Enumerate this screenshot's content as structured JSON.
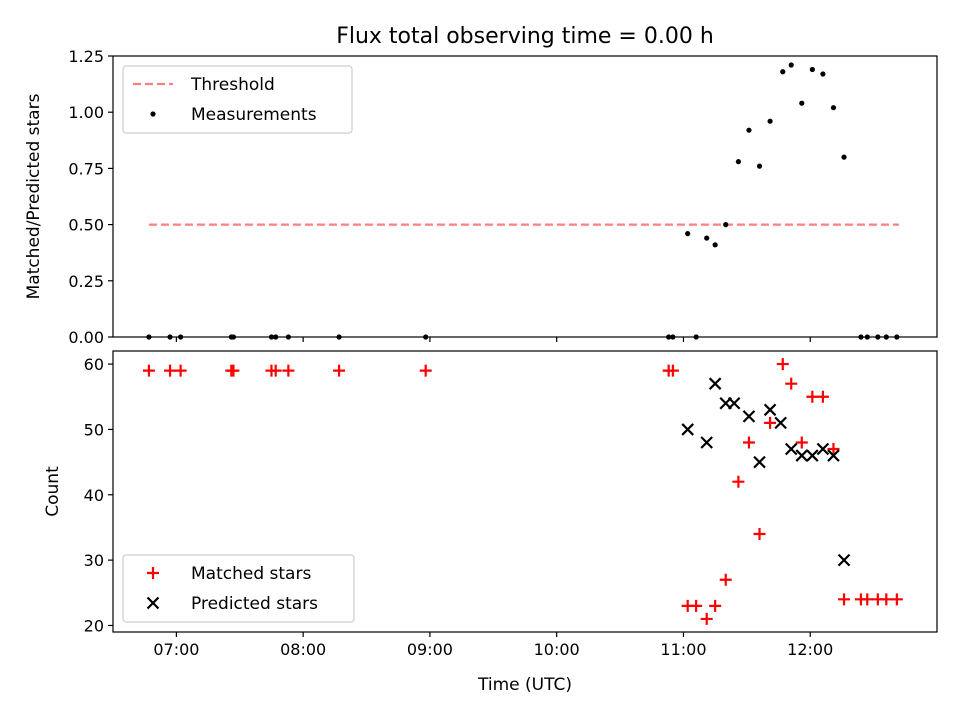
{
  "figure": {
    "title": "Flux total observing time = 0.00 h",
    "xlabel": "Time (UTC)"
  },
  "chart_data": [
    {
      "type": "scatter",
      "title": "Flux total observing time = 0.00 h",
      "xlabel": "",
      "ylabel": "Matched/Predicted stars",
      "xlim": [
        "06:30",
        "13:00"
      ],
      "ylim": [
        0,
        1.25
      ],
      "x_ticks": [
        "07:00",
        "08:00",
        "09:00",
        "10:00",
        "11:00",
        "12:00"
      ],
      "x_ticks_labeled": false,
      "y_ticks": [
        0.0,
        0.25,
        0.5,
        0.75,
        1.0,
        1.25
      ],
      "y_tick_labels": [
        "0.00",
        "0.25",
        "0.50",
        "0.75",
        "1.00",
        "1.25"
      ],
      "grid": false,
      "legend": {
        "placement": "top-left",
        "entries": [
          "Threshold",
          "Measurements"
        ]
      },
      "series": [
        {
          "name": "Threshold",
          "kind": "dashed-line",
          "color": "#ff7f7f",
          "points": [
            {
              "x": "06:47",
              "y": 0.5
            },
            {
              "x": "12:42",
              "y": 0.5
            }
          ]
        },
        {
          "name": "Measurements",
          "kind": "dot",
          "color": "#000000",
          "points": [
            {
              "x": "06:47",
              "y": 0
            },
            {
              "x": "06:57",
              "y": 0
            },
            {
              "x": "07:02",
              "y": 0
            },
            {
              "x": "07:26",
              "y": 0
            },
            {
              "x": "07:27",
              "y": 0
            },
            {
              "x": "07:45",
              "y": 0
            },
            {
              "x": "07:47",
              "y": 0
            },
            {
              "x": "07:53",
              "y": 0
            },
            {
              "x": "08:17",
              "y": 0
            },
            {
              "x": "08:58",
              "y": 0
            },
            {
              "x": "10:53",
              "y": 0
            },
            {
              "x": "10:55",
              "y": 0
            },
            {
              "x": "11:02",
              "y": 0.46
            },
            {
              "x": "11:06",
              "y": 0
            },
            {
              "x": "11:11",
              "y": 0.44
            },
            {
              "x": "11:15",
              "y": 0.41
            },
            {
              "x": "11:20",
              "y": 0.5
            },
            {
              "x": "11:26",
              "y": 0.78
            },
            {
              "x": "11:31",
              "y": 0.92
            },
            {
              "x": "11:36",
              "y": 0.76
            },
            {
              "x": "11:41",
              "y": 0.96
            },
            {
              "x": "11:47",
              "y": 1.18
            },
            {
              "x": "11:51",
              "y": 1.21
            },
            {
              "x": "11:56",
              "y": 1.04
            },
            {
              "x": "12:01",
              "y": 1.19
            },
            {
              "x": "12:06",
              "y": 1.17
            },
            {
              "x": "12:11",
              "y": 1.02
            },
            {
              "x": "12:16",
              "y": 0.8
            },
            {
              "x": "12:24",
              "y": 0
            },
            {
              "x": "12:27",
              "y": 0
            },
            {
              "x": "12:32",
              "y": 0
            },
            {
              "x": "12:36",
              "y": 0
            },
            {
              "x": "12:41",
              "y": 0
            }
          ]
        }
      ]
    },
    {
      "type": "scatter",
      "title": "",
      "xlabel": "Time (UTC)",
      "ylabel": "Count",
      "xlim": [
        "06:30",
        "13:00"
      ],
      "ylim": [
        19,
        62
      ],
      "x_ticks": [
        "07:00",
        "08:00",
        "09:00",
        "10:00",
        "11:00",
        "12:00"
      ],
      "x_ticks_labeled": true,
      "y_ticks": [
        20,
        30,
        40,
        50,
        60
      ],
      "y_tick_labels": [
        "20",
        "30",
        "40",
        "50",
        "60"
      ],
      "grid": false,
      "legend": {
        "placement": "bottom-left",
        "entries": [
          "Matched stars",
          "Predicted stars"
        ]
      },
      "series": [
        {
          "name": "Matched stars",
          "kind": "plus",
          "color": "#ff0000",
          "points": [
            {
              "x": "06:47",
              "y": 59
            },
            {
              "x": "06:57",
              "y": 59
            },
            {
              "x": "07:02",
              "y": 59
            },
            {
              "x": "07:26",
              "y": 59
            },
            {
              "x": "07:27",
              "y": 59
            },
            {
              "x": "07:45",
              "y": 59
            },
            {
              "x": "07:47",
              "y": 59
            },
            {
              "x": "07:53",
              "y": 59
            },
            {
              "x": "08:17",
              "y": 59
            },
            {
              "x": "08:58",
              "y": 59
            },
            {
              "x": "10:53",
              "y": 59
            },
            {
              "x": "10:55",
              "y": 59
            },
            {
              "x": "11:02",
              "y": 23
            },
            {
              "x": "11:06",
              "y": 23
            },
            {
              "x": "11:11",
              "y": 21
            },
            {
              "x": "11:15",
              "y": 23
            },
            {
              "x": "11:20",
              "y": 27
            },
            {
              "x": "11:26",
              "y": 42
            },
            {
              "x": "11:31",
              "y": 48
            },
            {
              "x": "11:36",
              "y": 34
            },
            {
              "x": "11:41",
              "y": 51
            },
            {
              "x": "11:47",
              "y": 60
            },
            {
              "x": "11:51",
              "y": 57
            },
            {
              "x": "11:56",
              "y": 48
            },
            {
              "x": "12:01",
              "y": 55
            },
            {
              "x": "12:06",
              "y": 55
            },
            {
              "x": "12:11",
              "y": 47
            },
            {
              "x": "12:16",
              "y": 24
            },
            {
              "x": "12:24",
              "y": 24
            },
            {
              "x": "12:27",
              "y": 24
            },
            {
              "x": "12:32",
              "y": 24
            },
            {
              "x": "12:36",
              "y": 24
            },
            {
              "x": "12:41",
              "y": 24
            }
          ]
        },
        {
          "name": "Predicted stars",
          "kind": "cross",
          "color": "#000000",
          "points": [
            {
              "x": "11:02",
              "y": 50
            },
            {
              "x": "11:11",
              "y": 48
            },
            {
              "x": "11:15",
              "y": 57
            },
            {
              "x": "11:20",
              "y": 54
            },
            {
              "x": "11:24",
              "y": 54
            },
            {
              "x": "11:31",
              "y": 52
            },
            {
              "x": "11:36",
              "y": 45
            },
            {
              "x": "11:41",
              "y": 53
            },
            {
              "x": "11:46",
              "y": 51
            },
            {
              "x": "11:51",
              "y": 47
            },
            {
              "x": "11:56",
              "y": 46
            },
            {
              "x": "12:01",
              "y": 46
            },
            {
              "x": "12:06",
              "y": 47
            },
            {
              "x": "12:11",
              "y": 46
            },
            {
              "x": "12:16",
              "y": 30
            }
          ]
        }
      ]
    }
  ]
}
